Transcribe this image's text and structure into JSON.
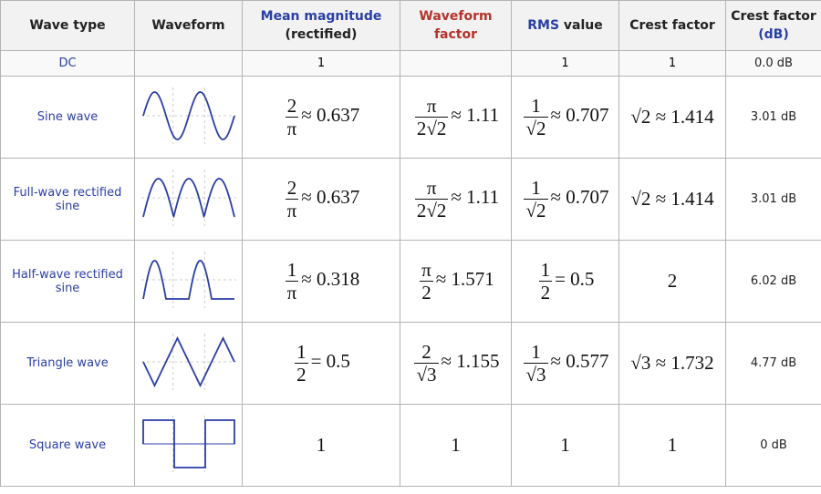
{
  "table": {
    "header": [
      [
        "Wave type"
      ],
      [
        "Waveform"
      ],
      [
        "Mean magnitude",
        "(rectified)"
      ],
      [
        "Waveform",
        "factor"
      ],
      [
        "RMS",
        "value"
      ],
      [
        "Crest factor"
      ],
      [
        "Crest factor",
        "(dB)"
      ]
    ],
    "rows": [
      {
        "wave_type": "DC",
        "mean": {
          "text": "1"
        },
        "form_factor": null,
        "rms": {
          "text": "1"
        },
        "crest": {
          "text": "1"
        },
        "crest_db": "0.0 dB"
      },
      {
        "wave_type": "Sine wave",
        "mean": {
          "num": "2",
          "den": "π",
          "rest": "≈ 0.637"
        },
        "form_factor": {
          "num": "π",
          "den": "2√2",
          "rest": "≈ 1.11"
        },
        "rms": {
          "num": "1",
          "den": "√2",
          "rest": "≈ 0.707"
        },
        "crest": {
          "text": "√2 ≈ 1.414"
        },
        "crest_db": "3.01 dB"
      },
      {
        "wave_type": "Full-wave rectified sine",
        "mean": {
          "num": "2",
          "den": "π",
          "rest": "≈ 0.637"
        },
        "form_factor": {
          "num": "π",
          "den": "2√2",
          "rest": "≈ 1.11"
        },
        "rms": {
          "num": "1",
          "den": "√2",
          "rest": "≈ 0.707"
        },
        "crest": {
          "text": "√2 ≈ 1.414"
        },
        "crest_db": "3.01 dB"
      },
      {
        "wave_type": "Half-wave rectified sine",
        "mean": {
          "num": "1",
          "den": "π",
          "rest": "≈ 0.318"
        },
        "form_factor": {
          "num": "π",
          "den": "2",
          "rest": "≈ 1.571"
        },
        "rms": {
          "num": "1",
          "den": "2",
          "rest": "= 0.5"
        },
        "crest": {
          "text": "2"
        },
        "crest_db": "6.02 dB"
      },
      {
        "wave_type": "Triangle wave",
        "mean": {
          "num": "1",
          "den": "2",
          "rest": "= 0.5"
        },
        "form_factor": {
          "num": "2",
          "den": "√3",
          "rest": "≈ 1.155"
        },
        "rms": {
          "num": "1",
          "den": "√3",
          "rest": "≈ 0.577"
        },
        "crest": {
          "text": "√3 ≈ 1.732"
        },
        "crest_db": "4.77 dB"
      },
      {
        "wave_type": "Square wave",
        "mean": {
          "text": "1"
        },
        "form_factor": {
          "text": "1"
        },
        "rms": {
          "text": "1"
        },
        "crest": {
          "text": "1"
        },
        "crest_db": "0 dB"
      }
    ]
  }
}
